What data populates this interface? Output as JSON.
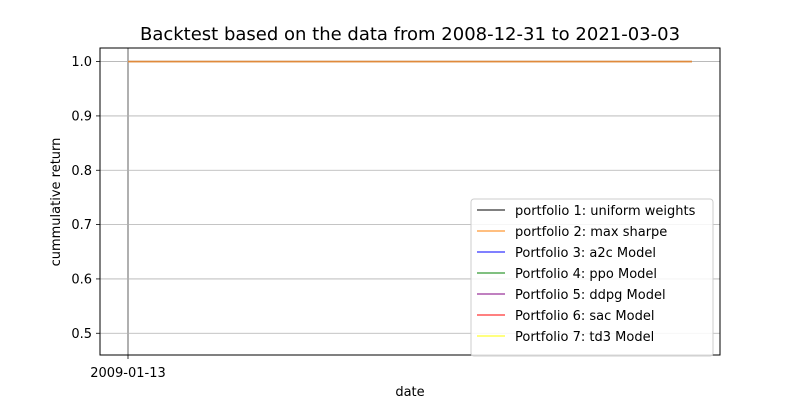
{
  "chart_data": {
    "type": "line",
    "title": "Backtest based on the data from 2008-12-31 to 2021-03-03",
    "xlabel": "date",
    "ylabel": "cummulative return",
    "x_tick_labels": [
      "2009-01-13"
    ],
    "y_ticks": [
      0.5,
      0.6,
      0.7,
      0.8,
      0.9,
      1.0
    ],
    "y_tick_labels": [
      "0.5",
      "0.6",
      "0.7",
      "0.8",
      "0.9",
      "1.0"
    ],
    "ylim": [
      0.46,
      1.025
    ],
    "grid": "y",
    "legend_position": "lower-right",
    "series": [
      {
        "name": "portfolio 1: uniform weights",
        "color": "#808080",
        "values": [
          1.0,
          1.0
        ]
      },
      {
        "name": "portfolio 2: max sharpe",
        "color": "#ffbf80",
        "values": [
          1.0,
          1.0
        ]
      },
      {
        "name": "Portfolio 3: a2c Model",
        "color": "#8080ff",
        "values": [
          1.0,
          1.0
        ]
      },
      {
        "name": "Portfolio 4: ppo Model",
        "color": "#80c080",
        "values": [
          1.0,
          1.0
        ]
      },
      {
        "name": "Portfolio 5: ddpg Model",
        "color": "#c080c0",
        "values": [
          1.0,
          1.0
        ]
      },
      {
        "name": "Portfolio 6: sac Model",
        "color": "#ff8080",
        "values": [
          1.0,
          1.0
        ]
      },
      {
        "name": "Portfolio 7: td3 Model",
        "color": "#ffff80",
        "values": [
          1.0,
          1.0
        ]
      }
    ],
    "visible_line": {
      "color": "#e08a3c",
      "values": [
        1.0,
        1.0
      ]
    }
  }
}
